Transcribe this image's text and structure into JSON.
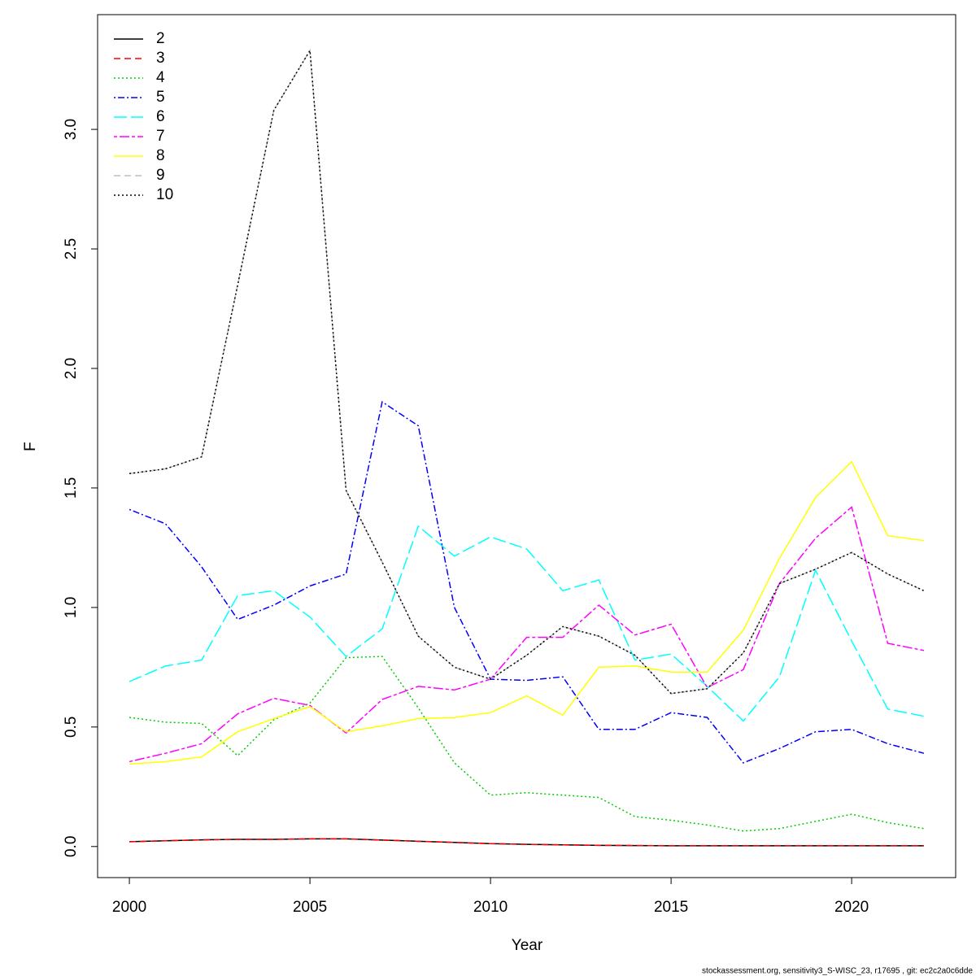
{
  "chart_data": {
    "type": "line",
    "x_label": "Year",
    "y_label": "F",
    "footer": "stockassessment.org, sensitivity3_S-WISC_23, r17695 , git: ec2c2a0c6dde",
    "x": [
      2000,
      2001,
      2002,
      2003,
      2004,
      2005,
      2006,
      2007,
      2008,
      2009,
      2010,
      2011,
      2012,
      2013,
      2014,
      2015,
      2016,
      2017,
      2018,
      2019,
      2020,
      2021,
      2022
    ],
    "xlim": [
      1999.12,
      2022.88
    ],
    "xticks": [
      2000,
      2005,
      2010,
      2015,
      2020
    ],
    "ylim": [
      -0.13,
      3.48
    ],
    "yticks": [
      {
        "value": 0,
        "label": "0.0"
      },
      0.5,
      {
        "value": 1,
        "label": "1.0"
      },
      1.5,
      {
        "value": 2,
        "label": "2.0"
      },
      2.5,
      {
        "value": 3,
        "label": "3.0"
      }
    ],
    "legend": "top-left",
    "series": [
      {
        "name": "2",
        "color": "#000000",
        "linetype": "solid",
        "values": [
          0.02,
          0.024,
          0.028,
          0.03,
          0.03,
          0.032,
          0.032,
          0.027,
          0.022,
          0.017,
          0.012,
          0.009,
          0.007,
          0.005,
          0.004,
          0.003,
          0.003,
          0.003,
          0.003,
          0.003,
          0.003,
          0.003,
          0.003
        ]
      },
      {
        "name": "3",
        "color": "#ff0000",
        "linetype": "dashed",
        "values": [
          0.02,
          0.024,
          0.028,
          0.03,
          0.03,
          0.032,
          0.032,
          0.027,
          0.022,
          0.017,
          0.012,
          0.009,
          0.007,
          0.005,
          0.004,
          0.003,
          0.003,
          0.003,
          0.003,
          0.003,
          0.003,
          0.003,
          0.003
        ]
      },
      {
        "name": "4",
        "color": "#00cd00",
        "linetype": "dotted",
        "values": [
          0.54,
          0.52,
          0.515,
          0.38,
          0.53,
          0.6,
          0.79,
          0.795,
          0.58,
          0.35,
          0.215,
          0.225,
          0.215,
          0.205,
          0.125,
          0.11,
          0.09,
          0.065,
          0.075,
          0.105,
          0.135,
          0.1,
          0.075
        ]
      },
      {
        "name": "5",
        "color": "#0000ff",
        "linetype": "dotdash",
        "values": [
          1.41,
          1.35,
          1.17,
          0.95,
          1.01,
          1.09,
          1.14,
          1.86,
          1.76,
          1.0,
          0.7,
          0.695,
          0.71,
          0.49,
          0.49,
          0.56,
          0.54,
          0.35,
          0.41,
          0.48,
          0.49,
          0.43,
          0.39
        ]
      },
      {
        "name": "6",
        "color": "#00ffff",
        "linetype": "longdash",
        "values": [
          0.69,
          0.755,
          0.78,
          1.05,
          1.07,
          0.96,
          0.795,
          0.91,
          1.34,
          1.215,
          1.295,
          1.245,
          1.07,
          1.115,
          0.78,
          0.805,
          0.67,
          0.525,
          0.71,
          1.155,
          0.86,
          0.575,
          0.545
        ]
      },
      {
        "name": "7",
        "color": "#ff00ff",
        "linetype": "twodash",
        "values": [
          0.355,
          0.39,
          0.43,
          0.555,
          0.62,
          0.59,
          0.475,
          0.615,
          0.67,
          0.655,
          0.7,
          0.875,
          0.875,
          1.01,
          0.885,
          0.93,
          0.665,
          0.74,
          1.1,
          1.29,
          1.42,
          0.85,
          0.82
        ]
      },
      {
        "name": "8",
        "color": "#ffff00",
        "linetype": "solid",
        "values": [
          0.345,
          0.355,
          0.375,
          0.48,
          0.535,
          0.585,
          0.48,
          0.505,
          0.535,
          0.54,
          0.56,
          0.63,
          0.55,
          0.75,
          0.755,
          0.73,
          0.73,
          0.905,
          1.205,
          1.46,
          1.61,
          1.3,
          1.28
        ]
      },
      {
        "name": "9",
        "color": "#bebebe",
        "linetype": "dashed",
        "values": [
          1.56,
          1.58,
          1.63,
          2.35,
          3.08,
          3.33,
          1.49,
          1.19,
          0.88,
          0.75,
          0.7,
          0.8,
          0.92,
          0.88,
          0.8,
          0.64,
          0.66,
          0.81,
          1.1,
          1.16,
          1.23,
          1.14,
          1.07
        ]
      },
      {
        "name": "10",
        "color": "#000000",
        "linetype": "dotted",
        "values": [
          1.56,
          1.58,
          1.63,
          2.35,
          3.08,
          3.33,
          1.49,
          1.19,
          0.88,
          0.75,
          0.7,
          0.8,
          0.92,
          0.88,
          0.8,
          0.64,
          0.66,
          0.81,
          1.1,
          1.16,
          1.23,
          1.14,
          1.07
        ]
      }
    ]
  }
}
